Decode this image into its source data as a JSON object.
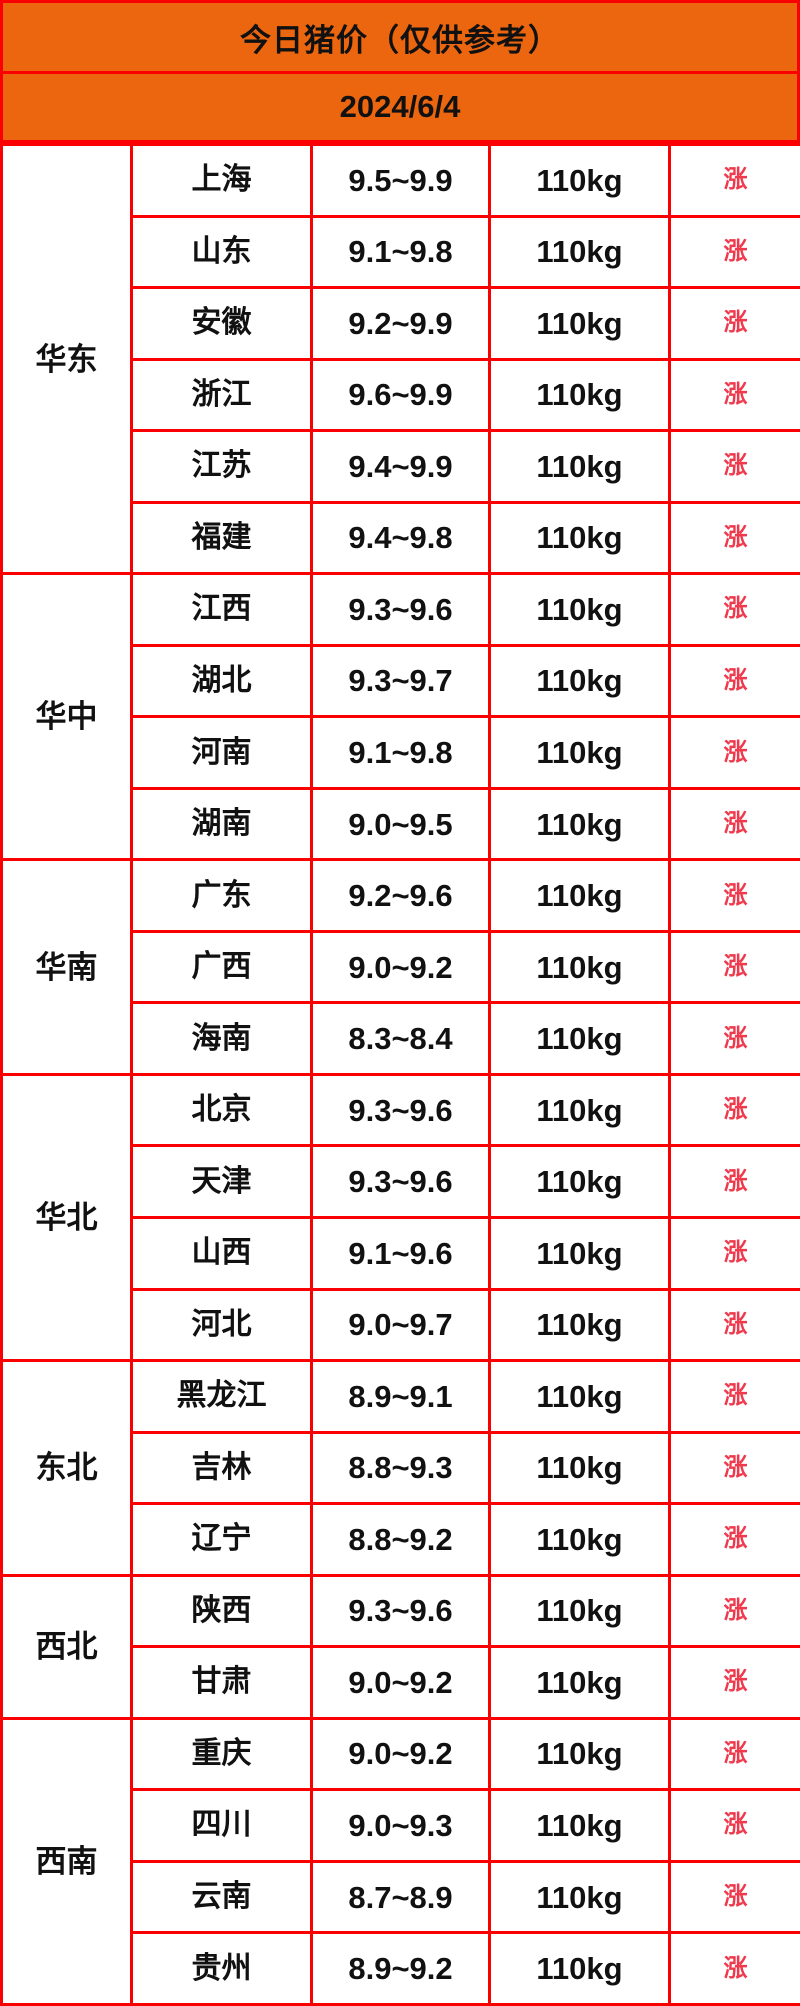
{
  "header": {
    "title": "今日猪价（仅供参考）",
    "date": "2024/6/4"
  },
  "colors": {
    "header_orange": "#EC650F",
    "border_red": "#FB0000",
    "trend_red": "#EF3A4D",
    "text_black": "#111111",
    "cell_white": "#FFFFFF"
  },
  "table": {
    "regions": [
      {
        "name": "华东",
        "rows": [
          {
            "province": "上海",
            "price": "9.5~9.9",
            "weight": "110kg",
            "trend": "涨"
          },
          {
            "province": "山东",
            "price": "9.1~9.8",
            "weight": "110kg",
            "trend": "涨"
          },
          {
            "province": "安徽",
            "price": "9.2~9.9",
            "weight": "110kg",
            "trend": "涨"
          },
          {
            "province": "浙江",
            "price": "9.6~9.9",
            "weight": "110kg",
            "trend": "涨"
          },
          {
            "province": "江苏",
            "price": "9.4~9.9",
            "weight": "110kg",
            "trend": "涨"
          },
          {
            "province": "福建",
            "price": "9.4~9.8",
            "weight": "110kg",
            "trend": "涨"
          }
        ]
      },
      {
        "name": "华中",
        "rows": [
          {
            "province": "江西",
            "price": "9.3~9.6",
            "weight": "110kg",
            "trend": "涨"
          },
          {
            "province": "湖北",
            "price": "9.3~9.7",
            "weight": "110kg",
            "trend": "涨"
          },
          {
            "province": "河南",
            "price": "9.1~9.8",
            "weight": "110kg",
            "trend": "涨"
          },
          {
            "province": "湖南",
            "price": "9.0~9.5",
            "weight": "110kg",
            "trend": "涨"
          }
        ]
      },
      {
        "name": "华南",
        "rows": [
          {
            "province": "广东",
            "price": "9.2~9.6",
            "weight": "110kg",
            "trend": "涨"
          },
          {
            "province": "广西",
            "price": "9.0~9.2",
            "weight": "110kg",
            "trend": "涨"
          },
          {
            "province": "海南",
            "price": "8.3~8.4",
            "weight": "110kg",
            "trend": "涨"
          }
        ]
      },
      {
        "name": "华北",
        "rows": [
          {
            "province": "北京",
            "price": "9.3~9.6",
            "weight": "110kg",
            "trend": "涨"
          },
          {
            "province": "天津",
            "price": "9.3~9.6",
            "weight": "110kg",
            "trend": "涨"
          },
          {
            "province": "山西",
            "price": "9.1~9.6",
            "weight": "110kg",
            "trend": "涨"
          },
          {
            "province": "河北",
            "price": "9.0~9.7",
            "weight": "110kg",
            "trend": "涨"
          }
        ]
      },
      {
        "name": "东北",
        "rows": [
          {
            "province": "黑龙江",
            "price": "8.9~9.1",
            "weight": "110kg",
            "trend": "涨"
          },
          {
            "province": "吉林",
            "price": "8.8~9.3",
            "weight": "110kg",
            "trend": "涨"
          },
          {
            "province": "辽宁",
            "price": "8.8~9.2",
            "weight": "110kg",
            "trend": "涨"
          }
        ]
      },
      {
        "name": "西北",
        "rows": [
          {
            "province": "陕西",
            "price": "9.3~9.6",
            "weight": "110kg",
            "trend": "涨"
          },
          {
            "province": "甘肃",
            "price": "9.0~9.2",
            "weight": "110kg",
            "trend": "涨"
          }
        ]
      },
      {
        "name": "西南",
        "rows": [
          {
            "province": "重庆",
            "price": "9.0~9.2",
            "weight": "110kg",
            "trend": "涨"
          },
          {
            "province": "四川",
            "price": "9.0~9.3",
            "weight": "110kg",
            "trend": "涨"
          },
          {
            "province": "云南",
            "price": "8.7~8.9",
            "weight": "110kg",
            "trend": "涨"
          },
          {
            "province": "贵州",
            "price": "8.9~9.2",
            "weight": "110kg",
            "trend": "涨"
          }
        ]
      }
    ]
  },
  "chart_data": {
    "type": "table",
    "title": "今日猪价（仅供参考）",
    "date": "2024/6/4",
    "rows": [
      [
        "华东",
        "上海",
        "9.5~9.9",
        "110kg",
        "涨"
      ],
      [
        "华东",
        "山东",
        "9.1~9.8",
        "110kg",
        "涨"
      ],
      [
        "华东",
        "安徽",
        "9.2~9.9",
        "110kg",
        "涨"
      ],
      [
        "华东",
        "浙江",
        "9.6~9.9",
        "110kg",
        "涨"
      ],
      [
        "华东",
        "江苏",
        "9.4~9.9",
        "110kg",
        "涨"
      ],
      [
        "华东",
        "福建",
        "9.4~9.8",
        "110kg",
        "涨"
      ],
      [
        "华中",
        "江西",
        "9.3~9.6",
        "110kg",
        "涨"
      ],
      [
        "华中",
        "湖北",
        "9.3~9.7",
        "110kg",
        "涨"
      ],
      [
        "华中",
        "河南",
        "9.1~9.8",
        "110kg",
        "涨"
      ],
      [
        "华中",
        "湖南",
        "9.0~9.5",
        "110kg",
        "涨"
      ],
      [
        "华南",
        "广东",
        "9.2~9.6",
        "110kg",
        "涨"
      ],
      [
        "华南",
        "广西",
        "9.0~9.2",
        "110kg",
        "涨"
      ],
      [
        "华南",
        "海南",
        "8.3~8.4",
        "110kg",
        "涨"
      ],
      [
        "华北",
        "北京",
        "9.3~9.6",
        "110kg",
        "涨"
      ],
      [
        "华北",
        "天津",
        "9.3~9.6",
        "110kg",
        "涨"
      ],
      [
        "华北",
        "山西",
        "9.1~9.6",
        "110kg",
        "涨"
      ],
      [
        "华北",
        "河北",
        "9.0~9.7",
        "110kg",
        "涨"
      ],
      [
        "东北",
        "黑龙江",
        "8.9~9.1",
        "110kg",
        "涨"
      ],
      [
        "东北",
        "吉林",
        "8.8~9.3",
        "110kg",
        "涨"
      ],
      [
        "东北",
        "辽宁",
        "8.8~9.2",
        "110kg",
        "涨"
      ],
      [
        "西北",
        "陕西",
        "9.3~9.6",
        "110kg",
        "涨"
      ],
      [
        "西北",
        "甘肃",
        "9.0~9.2",
        "110kg",
        "涨"
      ],
      [
        "西南",
        "重庆",
        "9.0~9.2",
        "110kg",
        "涨"
      ],
      [
        "西南",
        "四川",
        "9.0~9.3",
        "110kg",
        "涨"
      ],
      [
        "西南",
        "云南",
        "8.7~8.9",
        "110kg",
        "涨"
      ],
      [
        "西南",
        "贵州",
        "8.9~9.2",
        "110kg",
        "涨"
      ]
    ]
  }
}
